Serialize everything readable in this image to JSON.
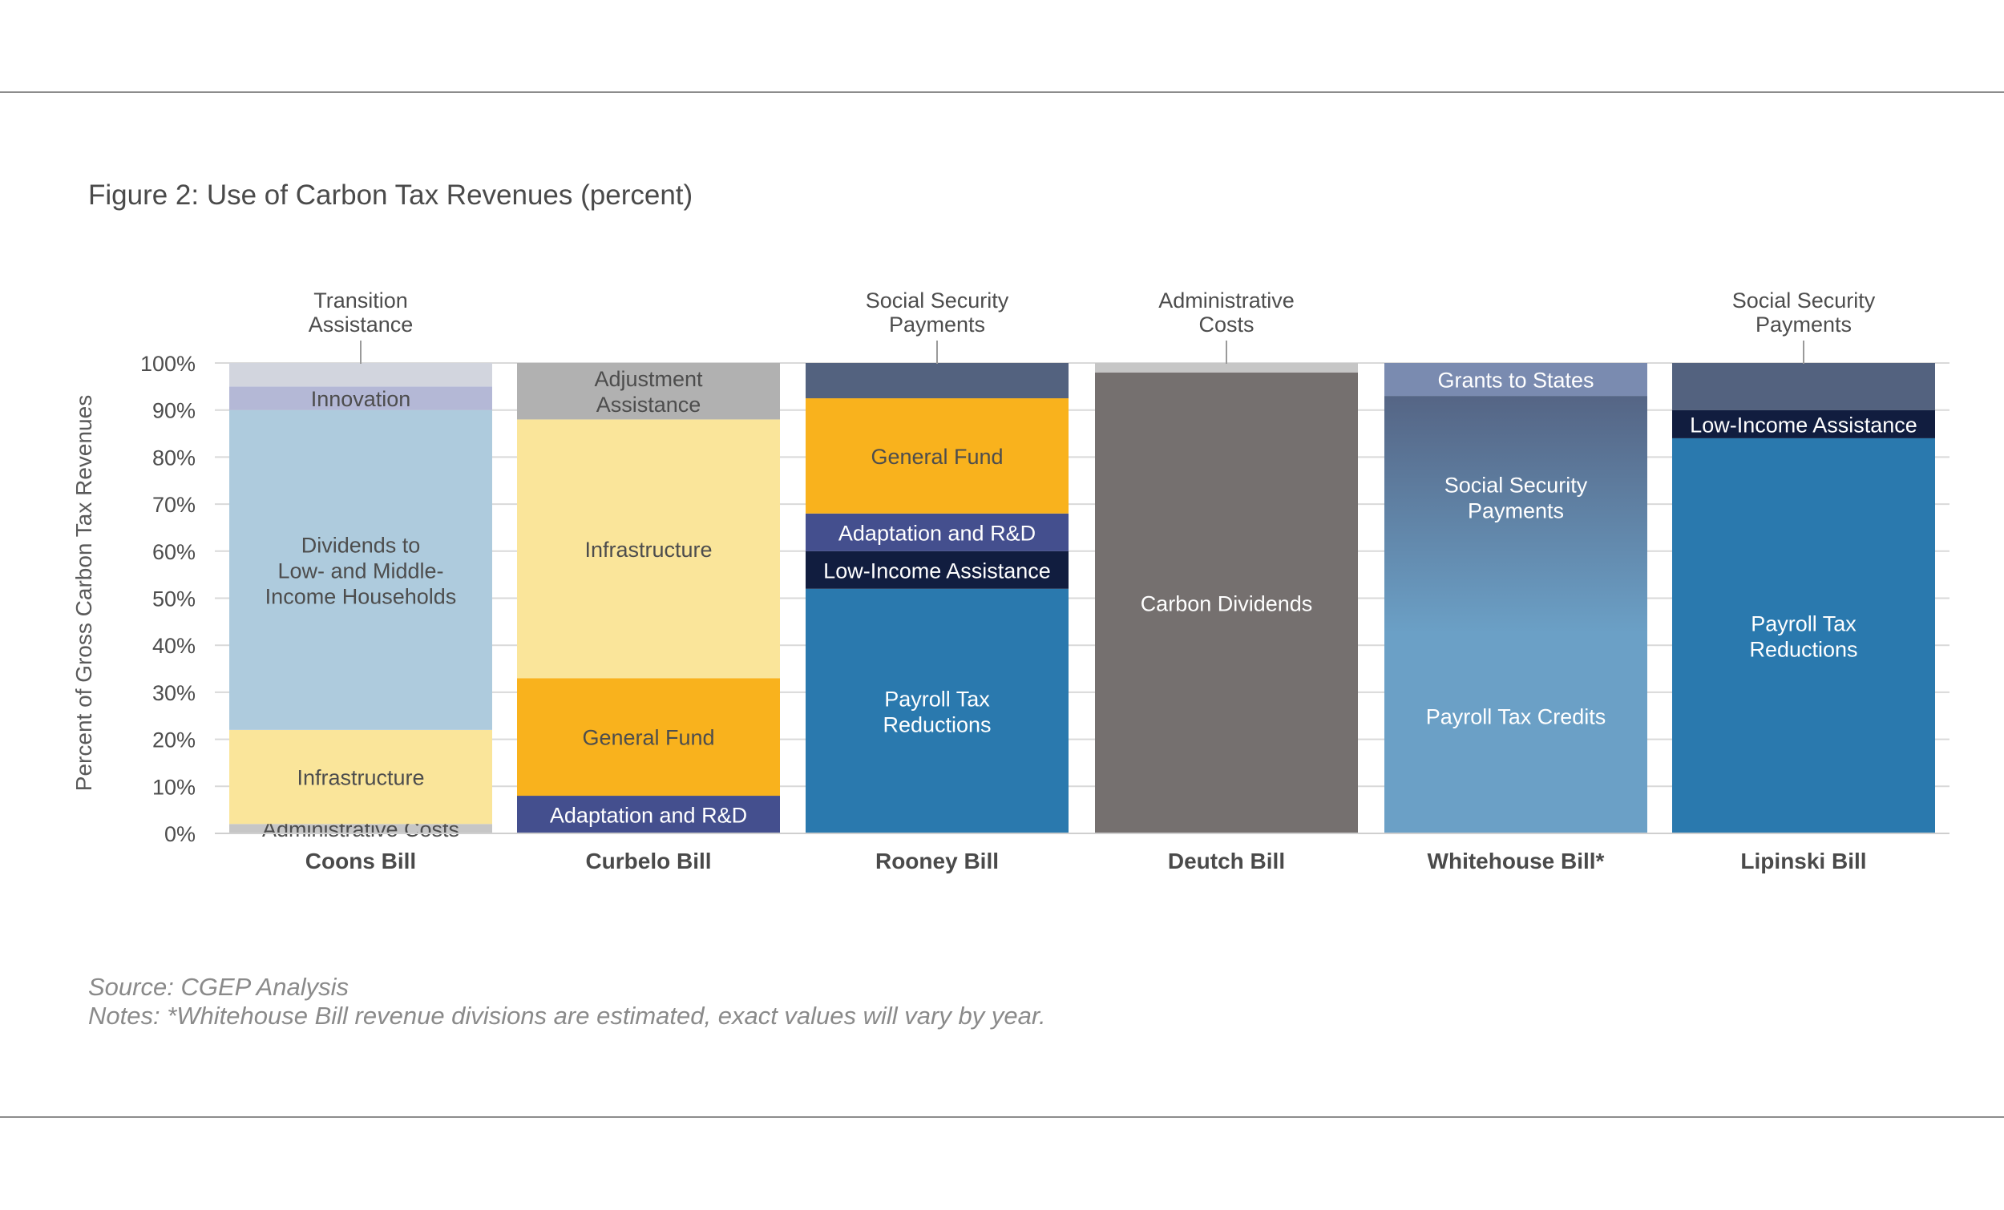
{
  "title": "Figure 2: Use of Carbon Tax Revenues (percent)",
  "source": "Source: CGEP Analysis",
  "note": "Notes: *Whitehouse Bill revenue divisions are estimated, exact values will vary by year.",
  "chart_data": {
    "type": "bar",
    "stacked": true,
    "ylabel": "Percent of Gross Carbon Tax Revenues",
    "ylim": [
      0,
      100
    ],
    "yticks": [
      "0%",
      "10%",
      "20%",
      "30%",
      "40%",
      "50%",
      "60%",
      "70%",
      "80%",
      "90%",
      "100%"
    ],
    "categories": [
      "Coons Bill",
      "Curbelo Bill",
      "Rooney Bill",
      "Deutch Bill",
      "Whitehouse Bill*",
      "Lipinski Bill"
    ],
    "bars": [
      {
        "name": "Coons Bill",
        "segments": [
          {
            "label": "Administrative Costs",
            "value": 2,
            "color": "#c6c6c6",
            "text_color": "#4d4d4d"
          },
          {
            "label": "Infrastructure",
            "value": 20,
            "color": "#fae59a",
            "text_color": "#4d4d4d"
          },
          {
            "label": "Dividends to Low- and Middle- Income Households",
            "lines": [
              "Dividends to",
              "Low- and Middle-",
              "Income Households"
            ],
            "value": 68,
            "color": "#aecbdd",
            "text_color": "#4d4d4d"
          },
          {
            "label": "Innovation",
            "value": 5,
            "color": "#b4b8d6",
            "text_color": "#4d4d4d"
          },
          {
            "label": "Transition Assistance",
            "lines": [
              "Transition",
              "Assistance"
            ],
            "value": 5,
            "color": "#d2d5de",
            "text_color": "#4d4d4d",
            "callout": true
          }
        ]
      },
      {
        "name": "Curbelo Bill",
        "segments": [
          {
            "label": "Adaptation and R&D",
            "value": 8,
            "color": "#444f8e",
            "text_color": "#ffffff"
          },
          {
            "label": "General Fund",
            "value": 25,
            "color": "#f9b21d",
            "text_color": "#4d4d4d"
          },
          {
            "label": "Infrastructure",
            "value": 55,
            "color": "#fae59a",
            "text_color": "#4d4d4d"
          },
          {
            "label": "Adjustment Assistance",
            "lines": [
              "Adjustment",
              "Assistance"
            ],
            "value": 12,
            "color": "#b1b1b1",
            "text_color": "#4d4d4d"
          }
        ]
      },
      {
        "name": "Rooney Bill",
        "segments": [
          {
            "label": "Payroll Tax Reductions",
            "lines": [
              "Payroll Tax",
              "Reductions"
            ],
            "value": 52,
            "color": "#2a79ae",
            "text_color": "#ffffff"
          },
          {
            "label": "Low-Income Assistance",
            "value": 8,
            "color": "#111d3f",
            "text_color": "#ffffff"
          },
          {
            "label": "Adaptation and R&D",
            "value": 8,
            "color": "#444f8e",
            "text_color": "#ffffff"
          },
          {
            "label": "General Fund",
            "value": 24.5,
            "color": "#f9b21d",
            "text_color": "#4d4d4d"
          },
          {
            "label": "Social Security Payments",
            "lines": [
              "Social Security",
              "Payments"
            ],
            "value": 7.5,
            "color": "#53627f",
            "text_color": "#4d4d4d",
            "callout": true
          }
        ]
      },
      {
        "name": "Deutch Bill",
        "segments": [
          {
            "label": "Carbon Dividends",
            "value": 98,
            "color": "#75706f",
            "text_color": "#ffffff"
          },
          {
            "label": "Administrative Costs",
            "lines": [
              "Administrative",
              "Costs"
            ],
            "value": 2,
            "color": "#c6c6c6",
            "text_color": "#4d4d4d",
            "callout": true
          }
        ]
      },
      {
        "name": "Whitehouse Bill*",
        "gradient": true,
        "segments": [
          {
            "label": "Payroll Tax Credits",
            "value": 50,
            "color": "#6ba0c6",
            "text_color": "#ffffff"
          },
          {
            "label": "Social Security Payments",
            "lines": [
              "Social Security",
              "Payments"
            ],
            "value": 43,
            "color": "#556585",
            "text_color": "#ffffff"
          },
          {
            "label": "Grants to States",
            "value": 7,
            "color": "#7a8bb0",
            "text_color": "#ffffff"
          }
        ]
      },
      {
        "name": "Lipinski Bill",
        "segments": [
          {
            "label": "Payroll Tax Reductions",
            "lines": [
              "Payroll Tax",
              "Reductions"
            ],
            "value": 84,
            "color": "#2a79ae",
            "text_color": "#ffffff"
          },
          {
            "label": "Low-Income Assistance",
            "value": 6,
            "color": "#111d3f",
            "text_color": "#ffffff"
          },
          {
            "label": "Social Security Payments",
            "lines": [
              "Social Security",
              "Payments"
            ],
            "value": 10,
            "color": "#53627f",
            "text_color": "#4d4d4d",
            "callout": true
          }
        ]
      }
    ]
  }
}
